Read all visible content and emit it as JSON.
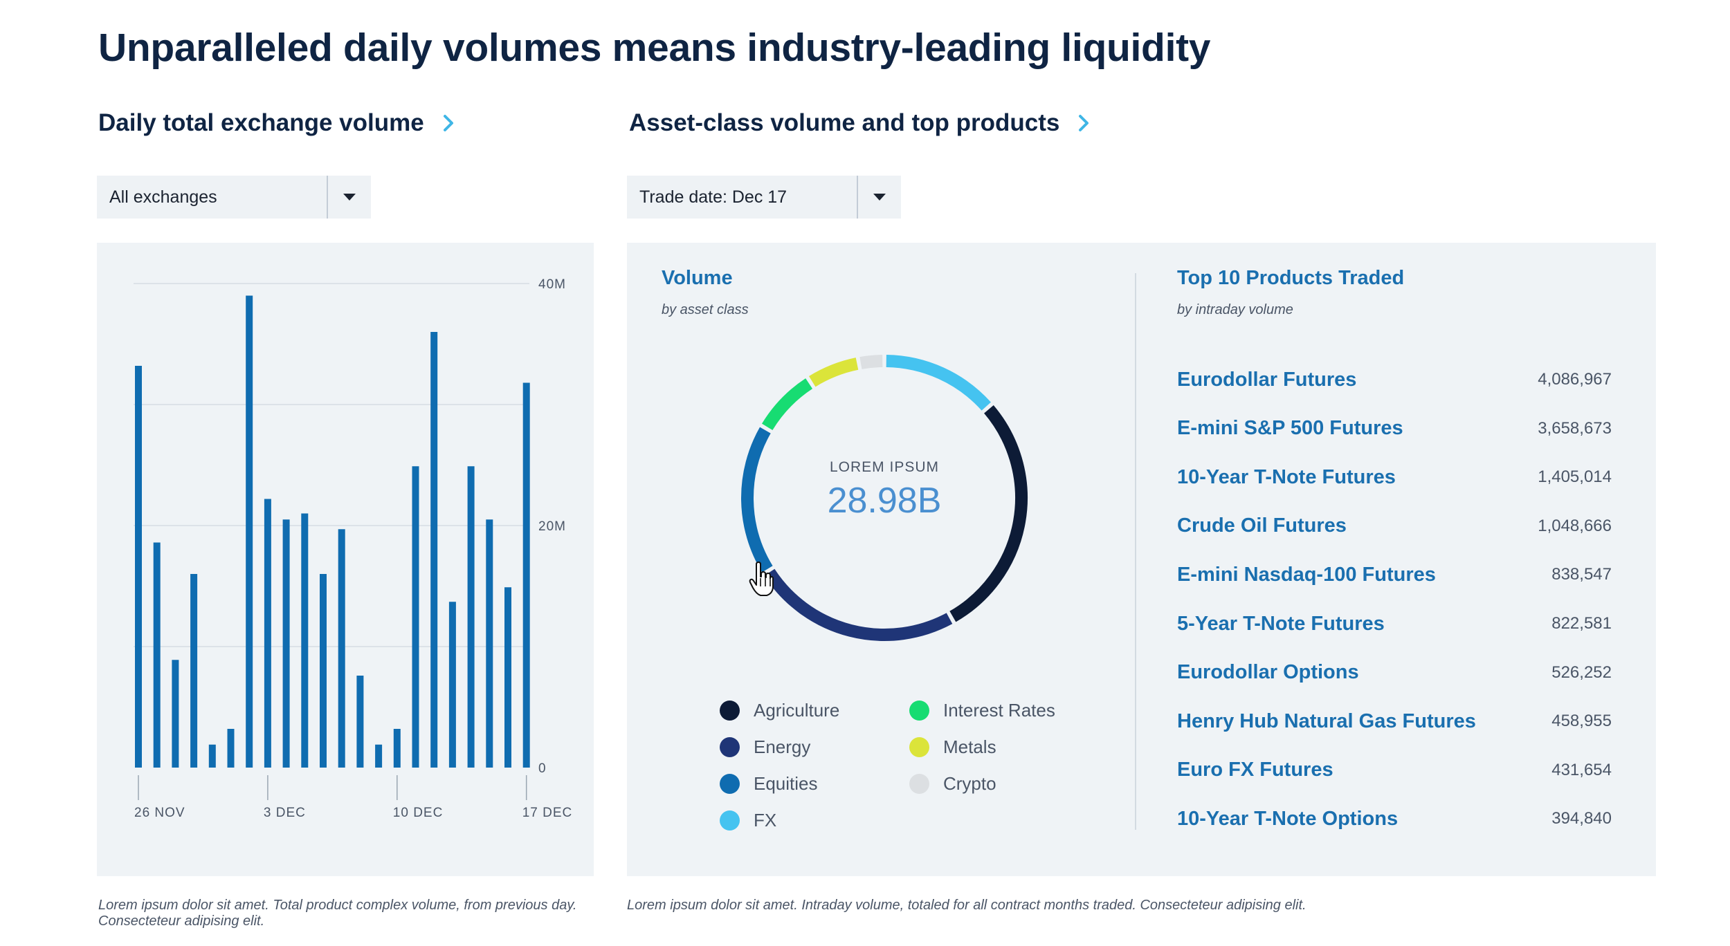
{
  "page": {
    "title": "Unparalleled daily volumes means industry-leading liquidity"
  },
  "left": {
    "heading": "Daily total exchange volume",
    "dropdown_value": "All exchanges",
    "footnote_line1": "Lorem ipsum dolor sit amet. Total product complex volume, from previous day.",
    "footnote_line2": "Consecteteur adipising elit."
  },
  "right": {
    "heading": "Asset-class volume and top products",
    "dropdown_value": "Trade date: Dec 17",
    "footnote": "Lorem ipsum dolor sit amet. Intraday volume, totaled for all contract months traded. Consecteteur adipising elit.",
    "volume_title": "Volume",
    "volume_caption": "by asset class",
    "donut_label": "LOREM IPSUM",
    "donut_value": "28.98B",
    "top_title": "Top 10 Products Traded",
    "top_caption": "by intraday volume",
    "legend": [
      {
        "label": "Agriculture",
        "color": "#0d1b36"
      },
      {
        "label": "Energy",
        "color": "#1f3577"
      },
      {
        "label": "Equities",
        "color": "#0f6cb0"
      },
      {
        "label": "FX",
        "color": "#45c3f0"
      },
      {
        "label": "Interest Rates",
        "color": "#17dc72"
      },
      {
        "label": "Metals",
        "color": "#dbe43a"
      },
      {
        "label": "Crypto",
        "color": "#dcdfe2"
      }
    ],
    "products": [
      {
        "name": "Eurodollar Futures",
        "value": "4,086,967"
      },
      {
        "name": "E-mini S&P 500 Futures",
        "value": "3,658,673"
      },
      {
        "name": "10-Year T-Note Futures",
        "value": "1,405,014"
      },
      {
        "name": "Crude Oil Futures",
        "value": "1,048,666"
      },
      {
        "name": "E-mini Nasdaq-100 Futures",
        "value": "838,547"
      },
      {
        "name": "5-Year T-Note Futures",
        "value": "822,581"
      },
      {
        "name": "Eurodollar Options",
        "value": "526,252"
      },
      {
        "name": "Henry Hub Natural Gas Futures",
        "value": "458,955"
      },
      {
        "name": "Euro FX Futures",
        "value": "431,654"
      },
      {
        "name": "10-Year T-Note Options",
        "value": "394,840"
      }
    ]
  },
  "colors": {
    "bar": "#0f6cb0",
    "title": "#0f2443",
    "link": "#1a6faf",
    "chevron": "#3fb6e6",
    "panel_bg": "#eff3f6"
  },
  "chart_data": [
    {
      "type": "bar",
      "title": "Daily total exchange volume",
      "ylim": [
        0,
        40000000
      ],
      "yticks": [
        0,
        20000000,
        40000000
      ],
      "ytick_labels": [
        "0",
        "20M",
        "40M"
      ],
      "xtick_labels": [
        "26 NOV",
        "3 DEC",
        "10 DEC",
        "17 DEC"
      ],
      "xtick_indices": [
        0,
        7,
        14,
        21
      ],
      "values": [
        33200000,
        18600000,
        8900000,
        16000000,
        1900000,
        3200000,
        39000000,
        22200000,
        20500000,
        21000000,
        16000000,
        19700000,
        7600000,
        1900000,
        3200000,
        24900000,
        36000000,
        13700000,
        24900000,
        20500000,
        14900000,
        31800000
      ]
    },
    {
      "type": "pie",
      "title": "Volume by asset class",
      "categories": [
        "FX",
        "Agriculture",
        "Energy",
        "Equities",
        "Interest Rates",
        "Metals",
        "Crypto"
      ],
      "values": [
        11.4,
        23.8,
        20.3,
        14.6,
        6.3,
        5.1,
        2.5
      ],
      "unit": "%"
    }
  ]
}
